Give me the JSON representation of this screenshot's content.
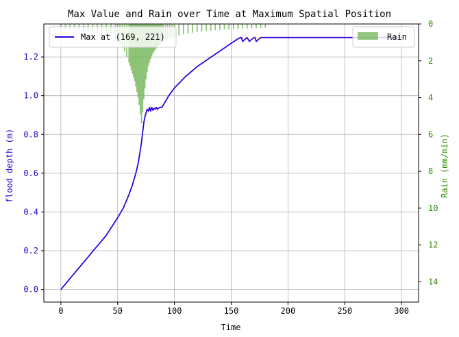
{
  "chart_data": {
    "type": "line",
    "title": "Max Value and Rain over Time at Maximum Spatial Position",
    "xlabel": "Time",
    "ylabel": "flood depth (m)",
    "y2label": "Rain (mm/min)",
    "xlim": [
      -15,
      315
    ],
    "ylim": [
      -0.065,
      1.37
    ],
    "y2lim": [
      15.1,
      0
    ],
    "x_ticks": [
      0,
      50,
      100,
      150,
      200,
      250,
      300
    ],
    "y_ticks": [
      0.0,
      0.2,
      0.4,
      0.6,
      0.8,
      1.0,
      1.2
    ],
    "y2_ticks": [
      0,
      2,
      4,
      6,
      8,
      10,
      12,
      14
    ],
    "grid": true,
    "colors": {
      "line": "#3300dd",
      "left_axis": "#3300cc",
      "rain": "#6ab04c",
      "right_axis": "#2e8b00",
      "grid": "#b0b0b0"
    },
    "series": [
      {
        "name": "Max at (169, 221)",
        "kind": "line",
        "legend_position": "upper-left",
        "x": [
          0,
          10,
          20,
          30,
          40,
          50,
          55,
          60,
          63,
          66,
          68,
          70,
          71,
          72,
          73,
          74,
          75,
          76,
          77,
          78,
          79,
          80,
          81,
          82,
          83,
          84,
          85,
          86,
          87,
          88,
          89,
          90,
          92,
          95,
          100,
          105,
          110,
          120,
          130,
          140,
          150,
          155,
          158,
          159,
          160,
          162,
          164,
          165,
          166,
          168,
          170,
          171,
          172,
          174,
          176,
          177,
          178,
          179,
          180,
          200,
          250,
          300
        ],
        "y": [
          0.0,
          0.07,
          0.14,
          0.21,
          0.28,
          0.37,
          0.42,
          0.49,
          0.54,
          0.6,
          0.65,
          0.72,
          0.76,
          0.81,
          0.86,
          0.89,
          0.91,
          0.93,
          0.92,
          0.94,
          0.92,
          0.94,
          0.925,
          0.935,
          0.93,
          0.94,
          0.93,
          0.935,
          0.94,
          0.94,
          0.94,
          0.95,
          0.97,
          1.0,
          1.04,
          1.07,
          1.1,
          1.15,
          1.19,
          1.23,
          1.27,
          1.29,
          1.3,
          1.3,
          1.28,
          1.29,
          1.3,
          1.29,
          1.28,
          1.29,
          1.3,
          1.3,
          1.28,
          1.29,
          1.3,
          1.3,
          1.3,
          1.3,
          1.3,
          1.3,
          1.3,
          1.3
        ]
      },
      {
        "name": "Rain",
        "kind": "bar",
        "axis": "right",
        "legend_position": "upper-right",
        "x": [
          0,
          4,
          8,
          12,
          16,
          20,
          24,
          28,
          32,
          36,
          40,
          44,
          48,
          50,
          52,
          54,
          56,
          58,
          60,
          61,
          62,
          63,
          64,
          65,
          66,
          67,
          68,
          69,
          70,
          71,
          72,
          73,
          74,
          75,
          76,
          77,
          78,
          79,
          80,
          81,
          82,
          83,
          84,
          85,
          86,
          87,
          88,
          89,
          90,
          92,
          94,
          96,
          98,
          100,
          104,
          108,
          112,
          116,
          120,
          124,
          128,
          132,
          136,
          140,
          144,
          148,
          152,
          156,
          160,
          164,
          168,
          172,
          176,
          180
        ],
        "values": [
          0.25,
          0.27,
          0.29,
          0.31,
          0.34,
          0.37,
          0.4,
          0.44,
          0.5,
          0.56,
          0.64,
          0.75,
          0.9,
          1.0,
          1.12,
          1.28,
          1.5,
          1.8,
          2.1,
          2.3,
          2.5,
          2.7,
          2.9,
          3.1,
          3.4,
          3.7,
          4.0,
          4.4,
          4.9,
          5.4,
          4.8,
          4.1,
          3.5,
          3.0,
          2.6,
          2.3,
          2.1,
          1.9,
          1.75,
          1.62,
          1.5,
          1.4,
          1.32,
          1.25,
          1.18,
          1.12,
          1.07,
          1.02,
          0.98,
          0.9,
          0.84,
          0.78,
          0.73,
          0.69,
          0.62,
          0.56,
          0.51,
          0.47,
          0.44,
          0.41,
          0.38,
          0.36,
          0.34,
          0.32,
          0.3,
          0.29,
          0.28,
          0.27,
          0.26,
          0.25,
          0.24,
          0.23,
          0.22,
          0.21
        ]
      }
    ]
  }
}
